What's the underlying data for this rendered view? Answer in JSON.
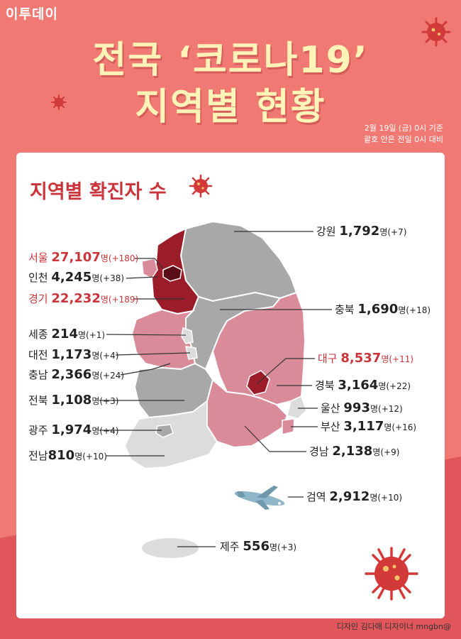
{
  "logo": "이투데이",
  "title_line1": "전국 ‘코로나19’",
  "title_line2": "지역별 현황",
  "date_line1": "2월 19일 (금) 0시 기준",
  "date_line2": "괄호 안은 전일 0시 대비",
  "section_title": "지역별 확진자 수",
  "unit": "명",
  "regions": [
    {
      "name": "강원",
      "count": "1,792",
      "change": "(+7)"
    },
    {
      "name": "서울",
      "count": "27,107",
      "change": "(+180)"
    },
    {
      "name": "인천",
      "count": "4,245",
      "change": "(+38)"
    },
    {
      "name": "경기",
      "count": "22,232",
      "change": "(+189)"
    },
    {
      "name": "충북",
      "count": "1,690",
      "change": "(+18)"
    },
    {
      "name": "세종",
      "count": "214",
      "change": "(+1)"
    },
    {
      "name": "대전",
      "count": "1,173",
      "change": "(+4)"
    },
    {
      "name": "충남",
      "count": "2,366",
      "change": "(+24)"
    },
    {
      "name": "대구",
      "count": "8,537",
      "change": "(+11)"
    },
    {
      "name": "경북",
      "count": "3,164",
      "change": "(+22)"
    },
    {
      "name": "전북",
      "count": "1,108",
      "change": "(+3)"
    },
    {
      "name": "울산",
      "count": "993",
      "change": "(+12)"
    },
    {
      "name": "부산",
      "count": "3,117",
      "change": "(+16)"
    },
    {
      "name": "광주",
      "count": "1,974",
      "change": "(+4)"
    },
    {
      "name": "경남",
      "count": "2,138",
      "change": "(+9)"
    },
    {
      "name": "전남",
      "count": "810",
      "change": "(+10)"
    },
    {
      "name": "검역",
      "count": "2,912",
      "change": "(+10)"
    },
    {
      "name": "제주",
      "count": "556",
      "change": "(+3)"
    }
  ],
  "colors": {
    "background": "#f07a73",
    "title": "#fff3b8",
    "accent_red": "#c9353a",
    "seoul_gyeonggi": "#9b1d2a",
    "high": "#d98b9a",
    "mid": "#a8a8a8",
    "low": "#dcdcdc"
  },
  "icons": [
    "virus-icon",
    "airplane-icon"
  ],
  "credit": "디자인 김다애 디자이너 mngbn@"
}
